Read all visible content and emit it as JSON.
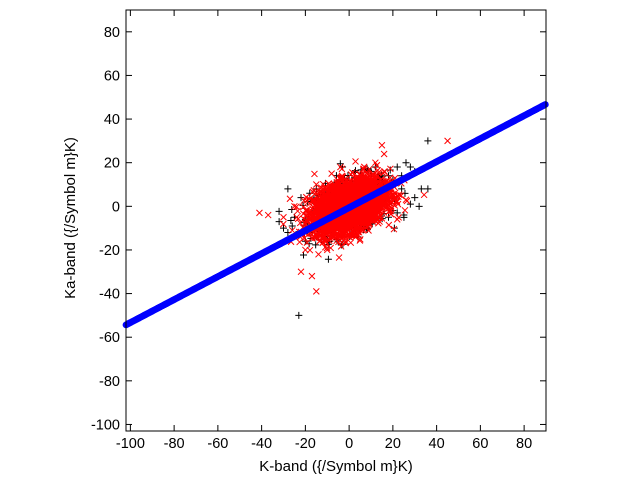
{
  "chart_data": {
    "type": "scatter",
    "title": "",
    "xlabel": "K-band ({/Symbol m}K)",
    "ylabel": "Ka-band ({/Symbol m}K)",
    "xlim": [
      -102,
      90
    ],
    "ylim": [
      -103,
      90
    ],
    "grid": false,
    "legend": "none",
    "xticks": [
      -100,
      -80,
      -60,
      -40,
      -20,
      0,
      20,
      40,
      60,
      80
    ],
    "yticks": [
      -100,
      -80,
      -60,
      -40,
      -20,
      0,
      20,
      40,
      60,
      80
    ],
    "series": [
      {
        "marker": "plus",
        "color": "#000000",
        "points": [
          [
            -23,
            -50
          ],
          [
            36,
            30
          ],
          [
            -28,
            8
          ],
          [
            -28,
            -12
          ],
          [
            33,
            8
          ],
          [
            36,
            8
          ],
          [
            -25,
            -5
          ],
          [
            28,
            18
          ],
          [
            30,
            16
          ],
          [
            24,
            14
          ],
          [
            -20,
            -16
          ],
          [
            -26,
            -9
          ],
          [
            -32,
            -7
          ],
          [
            26,
            20
          ],
          [
            18,
            14
          ],
          [
            20,
            12
          ],
          [
            22,
            18
          ],
          [
            15,
            12
          ],
          [
            14,
            10
          ],
          [
            -18,
            -12
          ],
          [
            -15,
            -14
          ],
          [
            -12,
            -14
          ],
          [
            10,
            16
          ],
          [
            5,
            14
          ],
          [
            -5,
            -16
          ],
          [
            -8,
            -12
          ],
          [
            20,
            -2
          ],
          [
            22,
            -3
          ],
          [
            28,
            1
          ],
          [
            25,
            -4
          ],
          [
            18,
            -5
          ],
          [
            -22,
            4
          ],
          [
            -18,
            6
          ],
          [
            -15,
            8
          ],
          [
            -10,
            4
          ],
          [
            12,
            18
          ],
          [
            7,
            17
          ],
          [
            -3,
            18
          ],
          [
            0,
            12
          ],
          [
            16,
            6
          ],
          [
            24,
            8
          ],
          [
            30,
            4
          ],
          [
            32,
            0
          ],
          [
            -30,
            -10
          ],
          [
            -24,
            -13
          ],
          [
            -20,
            -6
          ],
          [
            -16,
            -2
          ],
          [
            4,
            -14
          ],
          [
            8,
            -10
          ],
          [
            -6,
            -10
          ]
        ]
      },
      {
        "marker": "cross",
        "color": "#ff0000",
        "points": [
          [
            45,
            30
          ],
          [
            -41,
            -3
          ],
          [
            -37,
            -4
          ],
          [
            -22,
            -30
          ],
          [
            -17,
            -32
          ],
          [
            -15,
            -39
          ],
          [
            -30,
            -5
          ],
          [
            -26,
            -11
          ],
          [
            -20,
            -20
          ],
          [
            -14,
            -22
          ],
          [
            -10,
            -20
          ],
          [
            15,
            28
          ],
          [
            12,
            20
          ],
          [
            16,
            24
          ],
          [
            -8,
            15
          ],
          [
            -4,
            18
          ],
          [
            -12,
            -15
          ],
          [
            -18,
            -12
          ],
          [
            10,
            12
          ],
          [
            8,
            15
          ],
          [
            20,
            5
          ],
          [
            22,
            -6
          ],
          [
            -25,
            0
          ],
          [
            26,
            3
          ],
          [
            -15,
            10
          ],
          [
            5,
            -10
          ],
          [
            0,
            -14
          ],
          [
            -6,
            -8
          ],
          [
            14,
            -4
          ]
        ]
      },
      {
        "marker": "dot",
        "color": "#0000ff",
        "line": {
          "slope": 0.527,
          "intercept": -0.6,
          "x_from": -102,
          "x_to": 90
        }
      }
    ],
    "dense_cloud": {
      "color": "#ff0000",
      "center": [
        0,
        0
      ],
      "spread": [
        8,
        6
      ],
      "correlation": 0.4,
      "count": 3200
    }
  }
}
